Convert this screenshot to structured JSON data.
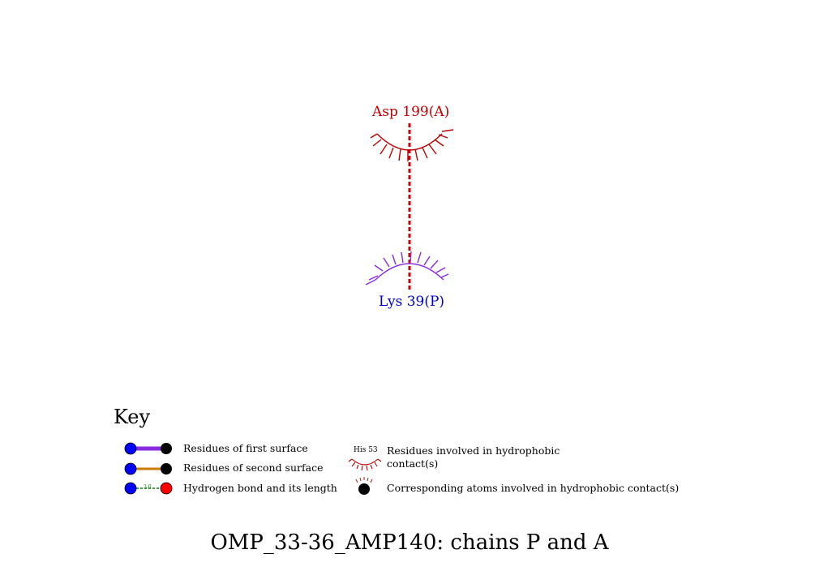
{
  "diagram": {
    "residue_top": {
      "label": "Asp 199(A)",
      "color": "#c00000"
    },
    "residue_bottom": {
      "label": "Lys 39(P)",
      "color": "#0000cc"
    },
    "hydrophobic_bottom_color": "#8a2be2",
    "hbond_color": "#cc0000"
  },
  "key": {
    "title": "Key",
    "first_surface": "Residues of first surface",
    "second_surface": "Residues of second surface",
    "hbond": "Hydrogen bond and its length",
    "hbond_length_example": "3.0",
    "hydrophobic_example_label": "His 53",
    "hydrophobic_residues_line1": "Residues involved in hydrophobic",
    "hydrophobic_residues_line2": "contact(s)",
    "hydrophobic_atoms": "Corresponding atoms involved in hydrophobic contact(s)",
    "colors": {
      "first_surface_bond": "#8a2be2",
      "second_surface_bond": "#cc7a00",
      "atom_blue": "#0000ff",
      "atom_black": "#000000",
      "atom_red": "#ff0000",
      "hbond_dash": "#008000"
    }
  },
  "footer": {
    "title": "OMP_33-36_AMP140: chains P and A"
  }
}
